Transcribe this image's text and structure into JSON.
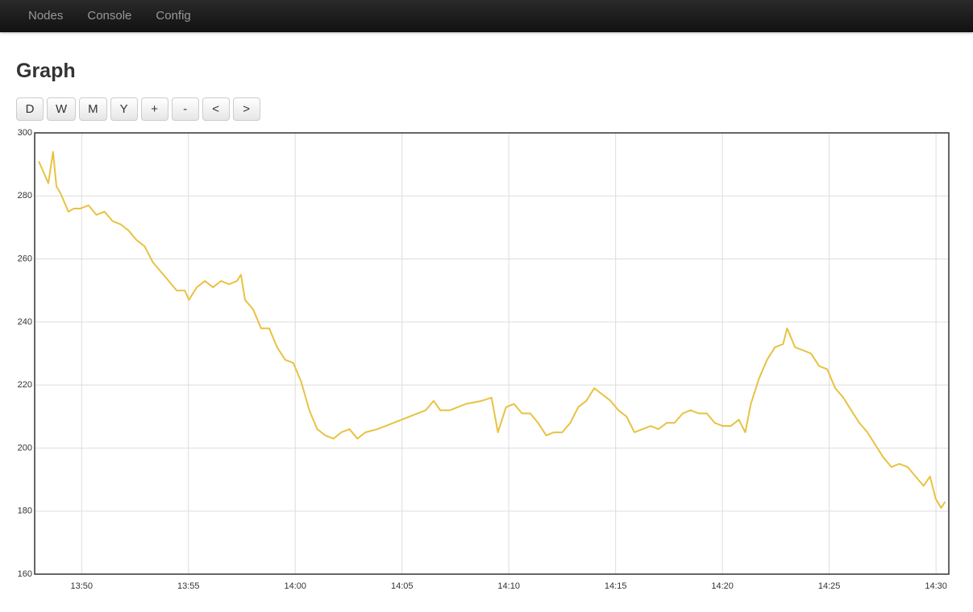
{
  "nav": [
    "Nodes",
    "Console",
    "Config"
  ],
  "heading": "Graph",
  "buttons": [
    "D",
    "W",
    "M",
    "Y",
    "+",
    "-",
    "<",
    ">"
  ],
  "chart_data": {
    "type": "line",
    "x": [
      827.99,
      828.25,
      828.44,
      828.66,
      828.82,
      829.0,
      829.19,
      829.38,
      829.64,
      829.94,
      830.32,
      830.69,
      831.07,
      831.45,
      831.82,
      832.2,
      832.57,
      832.95,
      833.33,
      833.7,
      834.08,
      834.45,
      834.83,
      835.02,
      835.39,
      835.77,
      836.15,
      836.52,
      836.9,
      837.27,
      837.46,
      837.65,
      838.03,
      838.4,
      838.78,
      839.15,
      839.53,
      839.91,
      840.28,
      840.66,
      841.03,
      841.41,
      841.79,
      842.16,
      842.54,
      842.91,
      843.29,
      843.85,
      844.98,
      846.11,
      846.48,
      846.79,
      847.24,
      847.99,
      848.74,
      849.19,
      849.49,
      849.87,
      850.24,
      850.62,
      851.0,
      851.37,
      851.75,
      852.12,
      852.5,
      852.88,
      853.25,
      853.63,
      854.0,
      854.38,
      854.76,
      855.13,
      855.51,
      855.88,
      856.26,
      856.64,
      857.01,
      857.39,
      857.76,
      858.14,
      858.51,
      858.89,
      859.27,
      859.64,
      860.02,
      860.39,
      860.77,
      861.07,
      861.33,
      861.71,
      862.09,
      862.46,
      862.84,
      863.03,
      863.4,
      863.78,
      864.15,
      864.53,
      864.91,
      865.28,
      865.66,
      866.03,
      866.41,
      866.79,
      867.16,
      867.54,
      867.91,
      868.29,
      868.67,
      869.04,
      869.42,
      869.72,
      869.98,
      870.24,
      870.43
    ],
    "series": [
      {
        "color": "#e8c242",
        "values": [
          291,
          287,
          284,
          294,
          283,
          281,
          278,
          275,
          276,
          276,
          277,
          274,
          275,
          272,
          271,
          269,
          266,
          264,
          259,
          256,
          253,
          250,
          250,
          247,
          251,
          253,
          251,
          253,
          252,
          253,
          255,
          247,
          244,
          238,
          238,
          232,
          228,
          227,
          221,
          212,
          206,
          204,
          203,
          205,
          206,
          203,
          205,
          206,
          209,
          212,
          215,
          212,
          212,
          214,
          215,
          216,
          205,
          213,
          214,
          211,
          211,
          208,
          204,
          205,
          205,
          208,
          213,
          215,
          219,
          217,
          215,
          212,
          210,
          205,
          206,
          207,
          206,
          208,
          208,
          211,
          212,
          211,
          211,
          208,
          207,
          207,
          209,
          205,
          214,
          222,
          228,
          232,
          233,
          238,
          232,
          231,
          230,
          226,
          225,
          219,
          216,
          212,
          208,
          205,
          201,
          197,
          194,
          195,
          194,
          191,
          188,
          191,
          184,
          181,
          183
        ]
      }
    ],
    "xlim": [
      827.8,
      870.6
    ],
    "xticks": [
      {
        "value": 830,
        "label": "13:50"
      },
      {
        "value": 835,
        "label": "13:55"
      },
      {
        "value": 840,
        "label": "14:00"
      },
      {
        "value": 845,
        "label": "14:05"
      },
      {
        "value": 850,
        "label": "14:10"
      },
      {
        "value": 855,
        "label": "14:15"
      },
      {
        "value": 860,
        "label": "14:20"
      },
      {
        "value": 865,
        "label": "14:25"
      },
      {
        "value": 870,
        "label": "14:30"
      }
    ],
    "ylim": [
      160,
      300
    ],
    "yticks": [
      160,
      180,
      200,
      220,
      240,
      260,
      280,
      300
    ],
    "grid": true
  }
}
